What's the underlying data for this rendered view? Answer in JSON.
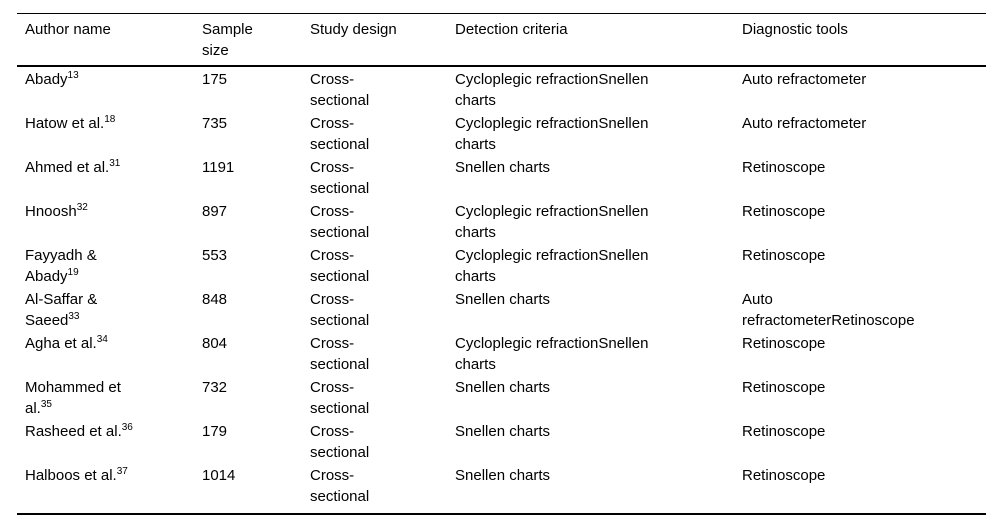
{
  "colors": {
    "background": "#ffffff",
    "text": "#000000",
    "rule": "#000000"
  },
  "table": {
    "columns": [
      "Author name",
      "Sample\nsize",
      "Study design",
      "Detection criteria",
      "Diagnostic tools"
    ],
    "rows": [
      {
        "author_lines": [
          "Abady"
        ],
        "ref": "13",
        "sample": "175",
        "design": "Cross-\nsectional",
        "detection": "Cycloplegic refractionSnellen\ncharts",
        "tools": "Auto refractometer"
      },
      {
        "author_lines": [
          "Hatow et al."
        ],
        "ref": "18",
        "sample": "735",
        "design": "Cross-\nsectional",
        "detection": "Cycloplegic refractionSnellen\ncharts",
        "tools": "Auto refractometer"
      },
      {
        "author_lines": [
          "Ahmed et al."
        ],
        "ref": "31",
        "sample": "1191",
        "design": "Cross-\nsectional",
        "detection": "Snellen charts",
        "tools": "Retinoscope"
      },
      {
        "author_lines": [
          "Hnoosh"
        ],
        "ref": "32",
        "sample": "897",
        "design": "Cross-\nsectional",
        "detection": "Cycloplegic refractionSnellen\ncharts",
        "tools": "Retinoscope"
      },
      {
        "author_lines": [
          "Fayyadh &",
          "Abady"
        ],
        "ref": "19",
        "sample": "553",
        "design": "Cross-\nsectional",
        "detection": "Cycloplegic refractionSnellen\ncharts",
        "tools": "Retinoscope"
      },
      {
        "author_lines": [
          "Al-Saffar &",
          "Saeed"
        ],
        "ref": "33",
        "sample": "848",
        "design": "Cross-\nsectional",
        "detection": "Snellen charts",
        "tools": "Auto\nrefractometerRetinoscope"
      },
      {
        "author_lines": [
          "Agha et al."
        ],
        "ref": "34",
        "sample": "804",
        "design": "Cross-\nsectional",
        "detection": "Cycloplegic refractionSnellen\ncharts",
        "tools": "Retinoscope"
      },
      {
        "author_lines": [
          "Mohammed et",
          "al."
        ],
        "ref": "35",
        "sample": "732",
        "design": "Cross-\nsectional",
        "detection": "Snellen charts",
        "tools": "Retinoscope"
      },
      {
        "author_lines": [
          "Rasheed et al."
        ],
        "ref": "36",
        "sample": "179",
        "design": "Cross-\nsectional",
        "detection": "Snellen charts",
        "tools": "Retinoscope"
      },
      {
        "author_lines": [
          "Halboos et al."
        ],
        "ref": "37",
        "sample": "1014",
        "design": "Cross-\nsectional",
        "detection": "Snellen charts",
        "tools": "Retinoscope"
      }
    ]
  }
}
